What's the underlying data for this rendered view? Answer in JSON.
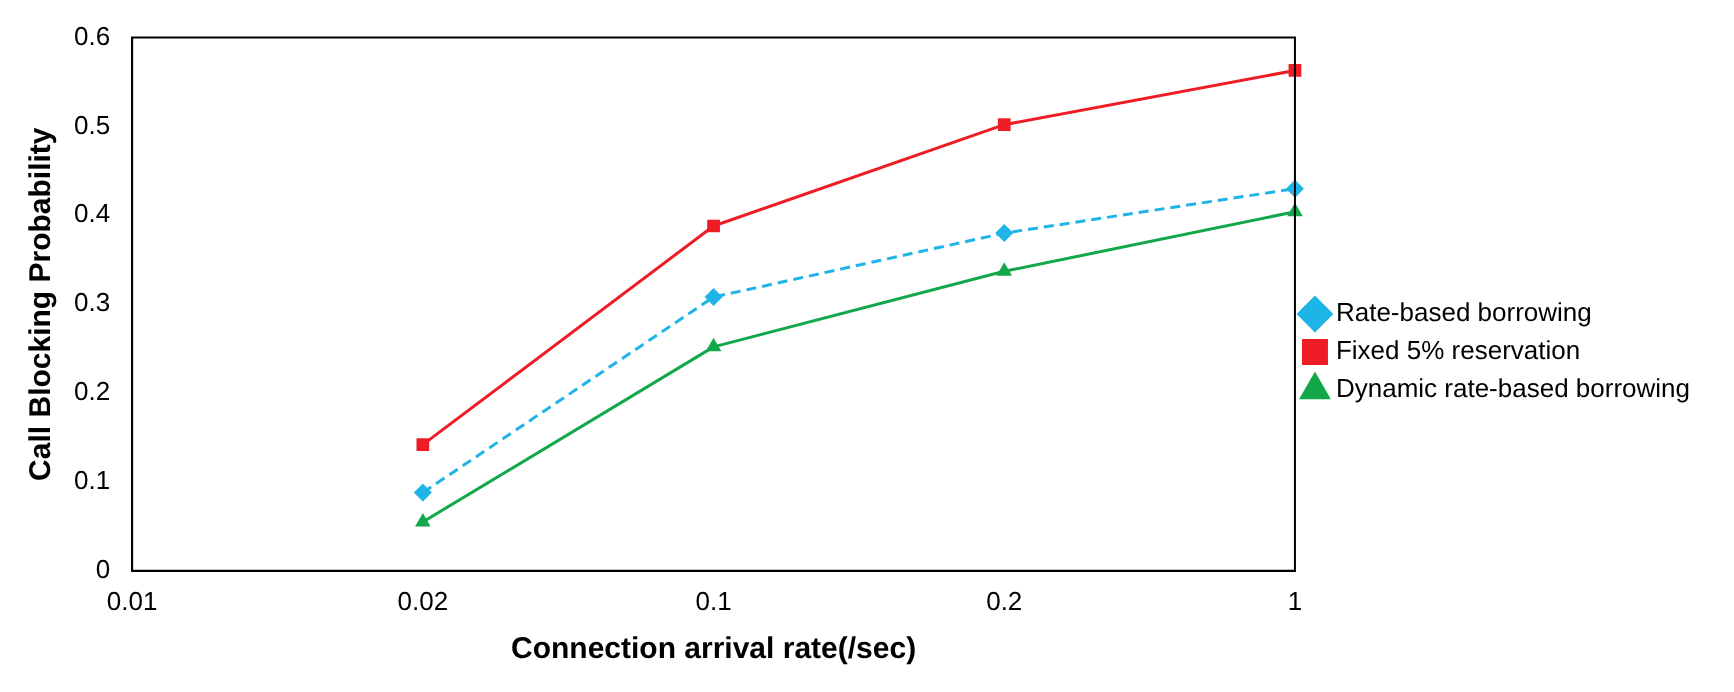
{
  "chart_data": {
    "type": "line",
    "xlabel": "Connection arrival rate(/sec)",
    "ylabel": "Call Blocking Probability",
    "categories": [
      "0.01",
      "0.02",
      "0.1",
      "0.2",
      "1"
    ],
    "series": [
      {
        "name": "Rate-based borrowing",
        "color": "#1fb4e8",
        "values": [
          null,
          0.088,
          0.308,
          0.38,
          0.43
        ],
        "marker": "diamond",
        "line_style": "dashed"
      },
      {
        "name": "Fixed 5% reservation",
        "color": "#ee1c25",
        "values": [
          null,
          0.142,
          0.388,
          0.502,
          0.563
        ],
        "marker": "square",
        "line_style": "solid"
      },
      {
        "name": "Dynamic rate-based borrowing",
        "color": "#12a84a",
        "values": [
          null,
          0.055,
          0.252,
          0.337,
          0.404
        ],
        "marker": "triangle",
        "line_style": "solid"
      }
    ],
    "ylim": [
      0,
      0.6
    ],
    "yticks": [
      0,
      0.1,
      0.2,
      0.3,
      0.4,
      0.5,
      0.6
    ],
    "grid": false,
    "legend": "right"
  }
}
